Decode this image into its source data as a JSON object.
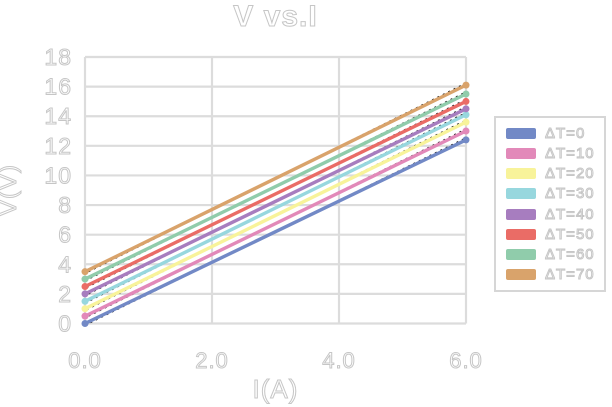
{
  "title": "V vs.I",
  "colors": {
    "background": "#ffffff",
    "grid": "#dcdcdc",
    "text_fill": "#ffffff",
    "text_outline": "#c6c6c6",
    "legend_border": "#d6d6d6",
    "trendline": "#1c1c1c"
  },
  "chart_data": {
    "type": "line",
    "title": "V vs.I",
    "xlabel": "I(A)",
    "ylabel": "V(V)",
    "xlim": [
      0,
      6
    ],
    "ylim": [
      0,
      18
    ],
    "xticks": [
      "0.0",
      "2.0",
      "4.0",
      "6.0"
    ],
    "xtick_values": [
      0,
      2,
      4,
      6
    ],
    "yticks": [
      0,
      2,
      4,
      6,
      8,
      10,
      12,
      14,
      16,
      18
    ],
    "grid": true,
    "legend_position": "right",
    "x": [
      0,
      6
    ],
    "series": [
      {
        "name": "ΔT=0",
        "color": "#7289c6",
        "values": [
          0.0,
          12.4
        ]
      },
      {
        "name": "ΔT=10",
        "color": "#e289b9",
        "values": [
          0.5,
          13.0
        ]
      },
      {
        "name": "ΔT=20",
        "color": "#f8f39a",
        "values": [
          1.0,
          13.6
        ]
      },
      {
        "name": "ΔT=30",
        "color": "#97d7de",
        "values": [
          1.5,
          14.1
        ]
      },
      {
        "name": "ΔT=40",
        "color": "#a77dbf",
        "values": [
          2.0,
          14.5
        ]
      },
      {
        "name": "ΔT=50",
        "color": "#ea6c66",
        "values": [
          2.5,
          15.0
        ]
      },
      {
        "name": "ΔT=60",
        "color": "#90ccab",
        "values": [
          3.0,
          15.5
        ]
      },
      {
        "name": "ΔT=70",
        "color": "#d9a36b",
        "values": [
          3.5,
          16.1
        ]
      }
    ],
    "trendlines": {
      "style": "dotted",
      "color": "#1c1c1c",
      "per_series": true
    }
  }
}
